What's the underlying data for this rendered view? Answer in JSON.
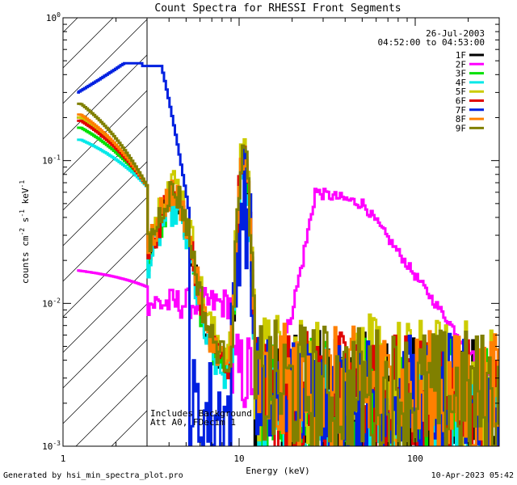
{
  "chart_data": {
    "type": "line",
    "title": "Count Spectra for RHESSI Front Segments",
    "xlabel": "Energy (keV)",
    "ylabel_parts": [
      "counts cm",
      "-2",
      " s",
      "-1",
      " keV",
      "-1"
    ],
    "x_scale": "log",
    "y_scale": "log",
    "xlim": [
      1.0,
      300.0
    ],
    "ylim": [
      0.001,
      1.0
    ],
    "x_tick_labels": [
      "1",
      "10",
      "100"
    ],
    "y_tick_labels": [
      {
        "base": "10",
        "exp": "-3"
      },
      {
        "base": "10",
        "exp": "-2"
      },
      {
        "base": "10",
        "exp": "-1"
      },
      {
        "base": "10",
        "exp": "0"
      }
    ],
    "grid": false,
    "attenuator_hatch_keV": [
      1.0,
      3.0
    ],
    "legend_position": "top-right",
    "date": "26-Jul-2003",
    "time_range": "04:52:00 to 04:53:00",
    "annotations": [
      "Includes Background",
      "Att A0, FDecim 1"
    ],
    "series": [
      {
        "name": "1F",
        "color": "#000000",
        "profile": "detector",
        "base": 1.0,
        "start": 0.2
      },
      {
        "name": "2F",
        "color": "#ff00ff",
        "profile": "detector2"
      },
      {
        "name": "3F",
        "color": "#00e000",
        "profile": "detector",
        "base": 0.95,
        "start": 0.17
      },
      {
        "name": "4F",
        "color": "#00e8e8",
        "profile": "detector",
        "base": 0.85,
        "start": 0.14
      },
      {
        "name": "5F",
        "color": "#cccc00",
        "profile": "detector",
        "base": 1.35,
        "start": 0.2
      },
      {
        "name": "6F",
        "color": "#e00000",
        "profile": "detector",
        "base": 1.05,
        "start": 0.19
      },
      {
        "name": "7F",
        "color": "#0020e0",
        "profile": "detector7"
      },
      {
        "name": "8F",
        "color": "#ff8000",
        "profile": "detector",
        "base": 1.1,
        "start": 0.21
      },
      {
        "name": "9F",
        "color": "#808000",
        "profile": "detector",
        "base": 1.15,
        "start": 0.25
      }
    ]
  },
  "footer": {
    "left": "Generated by hsi_min_spectra_plot.pro",
    "right": "10-Apr-2023 05:42"
  }
}
